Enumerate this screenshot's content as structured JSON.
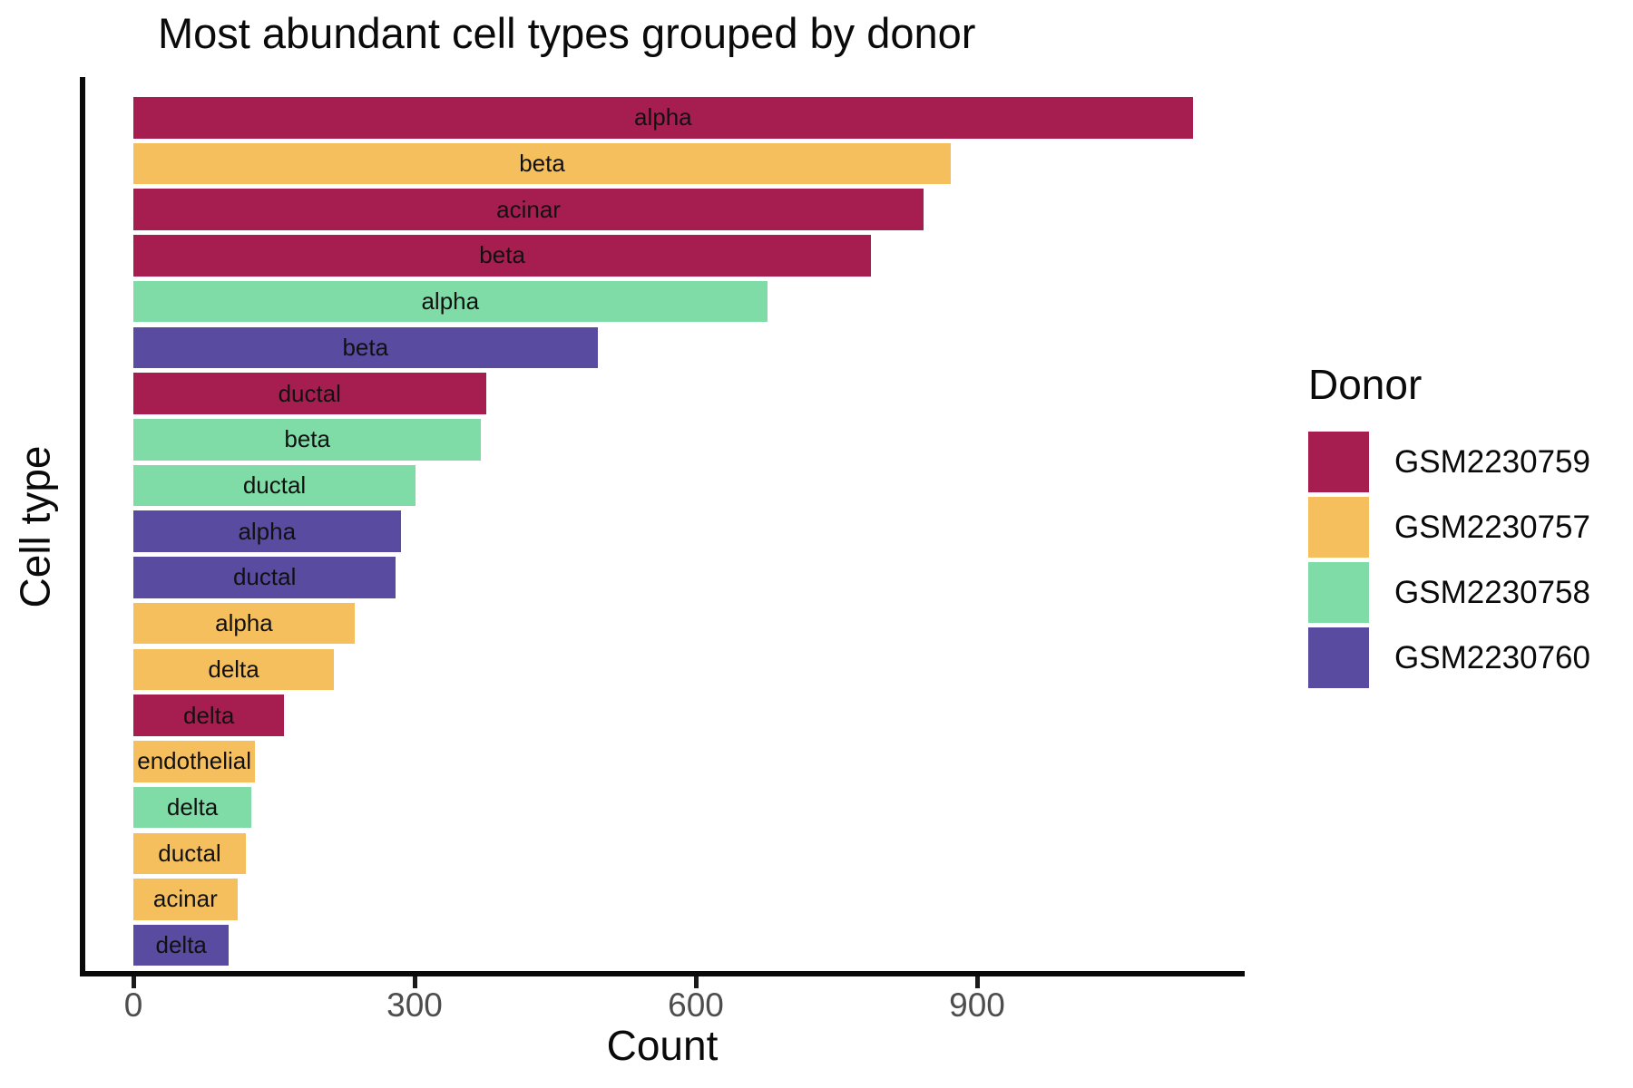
{
  "chart": {
    "title": "Most abundant cell types grouped by donor",
    "x_axis": {
      "label": "Count",
      "ticks": [
        0,
        300,
        600,
        900
      ]
    },
    "y_axis": {
      "label": "Cell type"
    },
    "legend": {
      "title": "Donor",
      "entries": [
        {
          "label": "GSM2230759",
          "color": "#A61E50"
        },
        {
          "label": "GSM2230757",
          "color": "#F6BF5E"
        },
        {
          "label": "GSM2230758",
          "color": "#7FDCA7"
        },
        {
          "label": "GSM2230760",
          "color": "#584BA0"
        }
      ]
    }
  },
  "chart_data": {
    "type": "bar",
    "orientation": "horizontal",
    "title": "Most abundant cell types grouped by donor",
    "xlabel": "Count",
    "ylabel": "Cell type",
    "xlim": [
      0,
      1186
    ],
    "x_ticks": [
      0,
      300,
      600,
      900
    ],
    "grid": false,
    "legend_title": "Donor",
    "legend_position": "right",
    "donor_colors": {
      "GSM2230759": "#A61E50",
      "GSM2230757": "#F6BF5E",
      "GSM2230758": "#7FDCA7",
      "GSM2230760": "#584BA0"
    },
    "bars": [
      {
        "cell_type": "alpha",
        "donor": "GSM2230759",
        "count": 1130
      },
      {
        "cell_type": "beta",
        "donor": "GSM2230757",
        "count": 872
      },
      {
        "cell_type": "acinar",
        "donor": "GSM2230759",
        "count": 843
      },
      {
        "cell_type": "beta",
        "donor": "GSM2230759",
        "count": 787
      },
      {
        "cell_type": "alpha",
        "donor": "GSM2230758",
        "count": 676
      },
      {
        "cell_type": "beta",
        "donor": "GSM2230760",
        "count": 495
      },
      {
        "cell_type": "ductal",
        "donor": "GSM2230759",
        "count": 376
      },
      {
        "cell_type": "beta",
        "donor": "GSM2230758",
        "count": 371
      },
      {
        "cell_type": "ductal",
        "donor": "GSM2230758",
        "count": 301
      },
      {
        "cell_type": "alpha",
        "donor": "GSM2230760",
        "count": 285
      },
      {
        "cell_type": "ductal",
        "donor": "GSM2230760",
        "count": 280
      },
      {
        "cell_type": "alpha",
        "donor": "GSM2230757",
        "count": 236
      },
      {
        "cell_type": "delta",
        "donor": "GSM2230757",
        "count": 214
      },
      {
        "cell_type": "delta",
        "donor": "GSM2230759",
        "count": 161
      },
      {
        "cell_type": "endothelial",
        "donor": "GSM2230757",
        "count": 130
      },
      {
        "cell_type": "delta",
        "donor": "GSM2230758",
        "count": 126
      },
      {
        "cell_type": "ductal",
        "donor": "GSM2230757",
        "count": 120
      },
      {
        "cell_type": "acinar",
        "donor": "GSM2230757",
        "count": 111
      },
      {
        "cell_type": "delta",
        "donor": "GSM2230760",
        "count": 102
      }
    ]
  }
}
